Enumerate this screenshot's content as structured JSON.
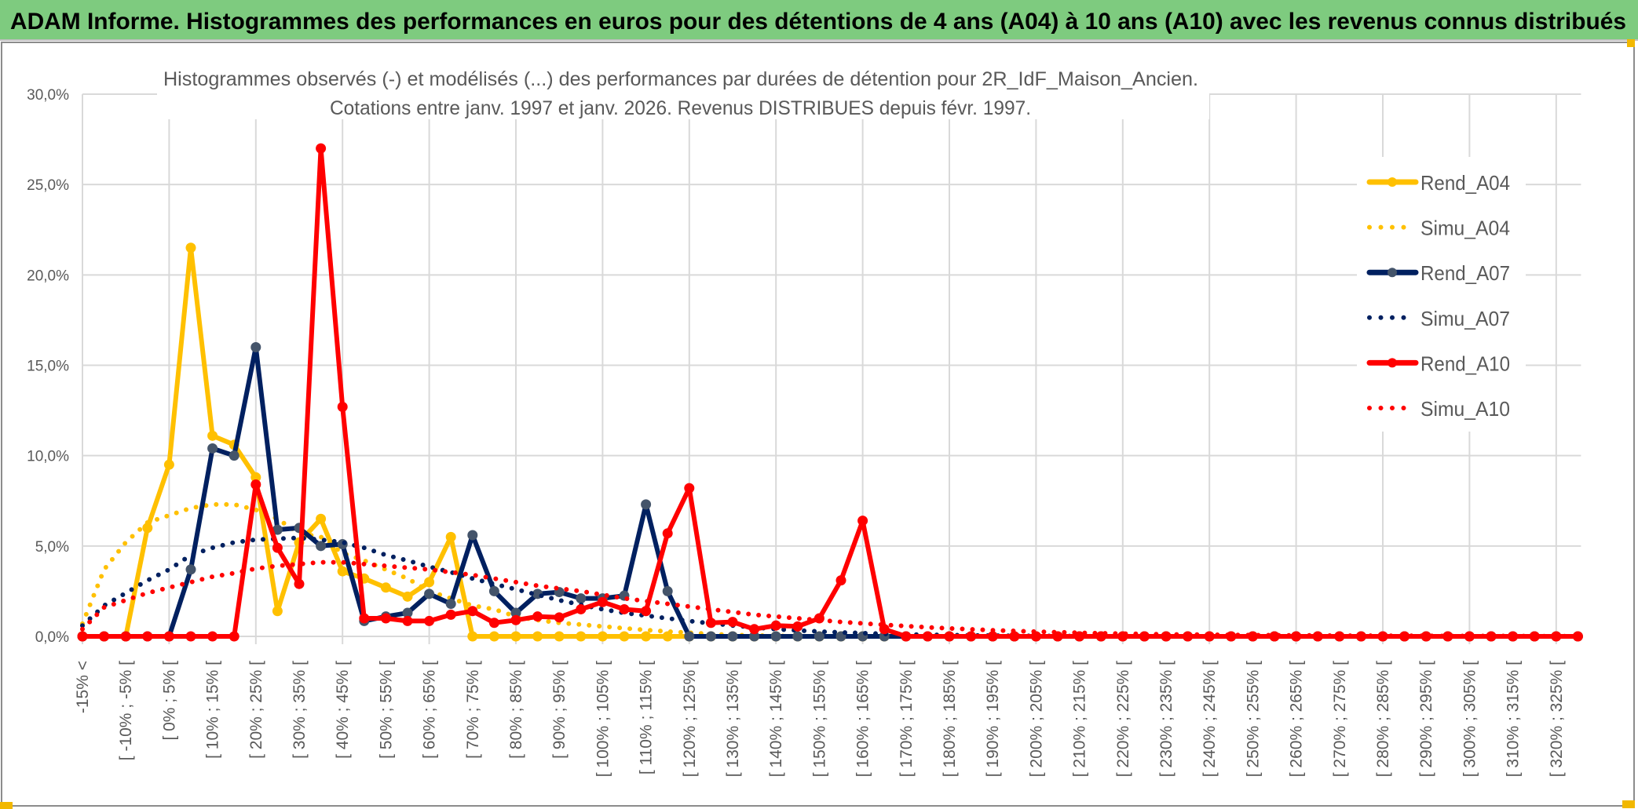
{
  "header": {
    "title": "ADAM Informe. Histogrammes des performances en euros pour des détentions de 4 ans (A04) à 10 ans (A10) avec les revenus connus distribués"
  },
  "colors": {
    "header_bg": "#7ECB7F",
    "A04": "#FFC000",
    "A07": "#002060",
    "A07_marker": "#44546A",
    "A10": "#FF0000",
    "grid": "#D9D9D9",
    "text": "#595959"
  },
  "chart_data": {
    "type": "line",
    "title_lines": [
      "Histogrammes observés (-) et modélisés (...) des performances par durées de détention pour 2R_IdF_Maison_Ancien.",
      "Cotations entre janv. 1997 et janv. 2026. Revenus DISTRIBUES depuis févr. 1997."
    ],
    "category_count": 70,
    "x_tick_labels": [
      "-15% <",
      "[ -10% ; -5% [",
      "[ 0% ; 5% [",
      "[ 10% ; 15% [",
      "[ 20% ; 25% [",
      "[ 30% ; 35% [",
      "[ 40% ; 45% [",
      "[ 50% ; 55% [",
      "[ 60% ; 65% [",
      "[ 70% ; 75% [",
      "[ 80% ; 85% [",
      "[ 90% ; 95% [",
      "[ 100% ; 105% [",
      "[ 110% ; 115% [",
      "[ 120% ; 125% [",
      "[ 130% ; 135% [",
      "[ 140% ; 145% [",
      "[ 150% ; 155% [",
      "[ 160% ; 165% [",
      "[ 170% ; 175% [",
      "[ 180% ; 185% [",
      "[ 190% ; 195% [",
      "[ 200% ; 205% [",
      "[ 210% ; 215% [",
      "[ 220% ; 225% [",
      "[ 230% ; 235% [",
      "[ 240% ; 245% [",
      "[ 250% ; 255% [",
      "[ 260% ; 265% [",
      "[ 270% ; 275% [",
      "[ 280% ; 285% [",
      "[ 290% ; 295% [",
      "[ 300% ; 305% [",
      "[ 310% ; 315% [",
      "[ 320% ; 325% ["
    ],
    "y_tick_labels": [
      "0,0%",
      "5,0%",
      "10,0%",
      "15,0%",
      "20,0%",
      "25,0%",
      "30,0%"
    ],
    "ylim": [
      0,
      30
    ],
    "yunit": "%",
    "grid": true,
    "legend_position": "right",
    "series": [
      {
        "name": "Rend_A04",
        "style": "solid",
        "color": "#FFC000",
        "marker": "#FFC000",
        "values": [
          0,
          0,
          0,
          6.0,
          9.5,
          21.5,
          11.1,
          10.6,
          8.8,
          1.4,
          5.2,
          6.5,
          3.6,
          3.2,
          2.7,
          2.2,
          3.0,
          5.5,
          0,
          0,
          0,
          0,
          0,
          0,
          0,
          0,
          0,
          0,
          0,
          0,
          0,
          0,
          0,
          0,
          0,
          0,
          0,
          0,
          0,
          0,
          0,
          0,
          0,
          0,
          0,
          0,
          0,
          0,
          0,
          0,
          0,
          0,
          0,
          0,
          0,
          0,
          0,
          0,
          0,
          0,
          0,
          0,
          0,
          0,
          0,
          0,
          0,
          0,
          0,
          0
        ]
      },
      {
        "name": "Simu_A04",
        "style": "dotted",
        "color": "#FFC000",
        "values": [
          0.7,
          3.7,
          5.2,
          6.3,
          6.7,
          7.1,
          7.3,
          7.3,
          7.0,
          6.5,
          5.7,
          5.5,
          4.6,
          4.2,
          3.7,
          3.2,
          2.5,
          2.1,
          1.7,
          1.5,
          1.1,
          0.9,
          0.75,
          0.65,
          0.55,
          0.45,
          0.35,
          0.27,
          0.2,
          0.13,
          0.08,
          0.05,
          0.03,
          0,
          0,
          0,
          0,
          0,
          0,
          0,
          0,
          0,
          0,
          0,
          0,
          0,
          0,
          0,
          0,
          0,
          0,
          0,
          0,
          0,
          0,
          0,
          0,
          0,
          0,
          0,
          0,
          0,
          0,
          0,
          0,
          0,
          0,
          0,
          0,
          0
        ]
      },
      {
        "name": "Rend_A07",
        "style": "solid",
        "color": "#002060",
        "marker": "#44546A",
        "values": [
          0,
          0,
          0,
          0,
          0,
          3.7,
          10.4,
          10.0,
          16.0,
          5.9,
          6.0,
          5.0,
          5.1,
          0.85,
          1.1,
          1.3,
          2.35,
          1.8,
          5.6,
          2.5,
          1.3,
          2.35,
          2.45,
          2.1,
          2.1,
          2.25,
          7.3,
          2.5,
          0,
          0,
          0,
          0,
          0,
          0,
          0,
          0,
          0,
          0,
          0,
          0,
          0,
          0,
          0,
          0,
          0,
          0,
          0,
          0,
          0,
          0,
          0,
          0,
          0,
          0,
          0,
          0,
          0,
          0,
          0,
          0,
          0,
          0,
          0,
          0,
          0,
          0,
          0,
          0,
          0,
          0
        ]
      },
      {
        "name": "Simu_A07",
        "style": "dotted",
        "color": "#002060",
        "values": [
          0.6,
          1.7,
          2.4,
          3.1,
          3.7,
          4.5,
          4.9,
          5.2,
          5.35,
          5.4,
          5.45,
          5.35,
          5.2,
          4.9,
          4.5,
          4.2,
          3.85,
          3.55,
          3.2,
          2.9,
          2.6,
          2.3,
          2.0,
          1.75,
          1.5,
          1.3,
          1.15,
          1.0,
          0.85,
          0.72,
          0.6,
          0.5,
          0.4,
          0.33,
          0.27,
          0.22,
          0.18,
          0.14,
          0.11,
          0.09,
          0.07,
          0.05,
          0.04,
          0.03,
          0.02,
          0.02,
          0.01,
          0,
          0,
          0,
          0,
          0,
          0,
          0,
          0,
          0,
          0,
          0,
          0,
          0,
          0,
          0,
          0,
          0,
          0,
          0,
          0,
          0,
          0,
          0
        ]
      },
      {
        "name": "Rend_A10",
        "style": "solid",
        "color": "#FF0000",
        "marker": "#FF0000",
        "values": [
          0,
          0,
          0,
          0,
          0,
          0,
          0,
          0,
          8.4,
          4.9,
          2.9,
          27.0,
          12.7,
          1.0,
          1.0,
          0.85,
          0.85,
          1.2,
          1.4,
          0.75,
          0.9,
          1.1,
          1.05,
          1.5,
          1.9,
          1.5,
          1.4,
          5.7,
          8.2,
          0.75,
          0.8,
          0.4,
          0.6,
          0.55,
          1.0,
          3.1,
          6.4,
          0.4,
          0,
          0,
          0,
          0,
          0,
          0,
          0,
          0,
          0,
          0,
          0,
          0,
          0,
          0,
          0,
          0,
          0,
          0,
          0,
          0,
          0,
          0,
          0,
          0,
          0,
          0,
          0,
          0,
          0,
          0,
          0,
          0
        ]
      },
      {
        "name": "Simu_A10",
        "style": "dotted",
        "color": "#FF0000",
        "values": [
          0.4,
          1.6,
          2.0,
          2.4,
          2.7,
          3.0,
          3.3,
          3.5,
          3.75,
          3.9,
          4.0,
          4.1,
          4.1,
          4.0,
          3.9,
          3.8,
          3.7,
          3.55,
          3.4,
          3.2,
          3.0,
          2.8,
          2.65,
          2.5,
          2.3,
          2.1,
          1.95,
          1.8,
          1.65,
          1.5,
          1.35,
          1.2,
          1.1,
          1.0,
          0.9,
          0.8,
          0.72,
          0.64,
          0.57,
          0.5,
          0.44,
          0.39,
          0.34,
          0.3,
          0.26,
          0.23,
          0.2,
          0.17,
          0.15,
          0.13,
          0.11,
          0.1,
          0.09,
          0.08,
          0.07,
          0.06,
          0.05,
          0.05,
          0.04,
          0.04,
          0.03,
          0.03,
          0.03,
          0.02,
          0.02,
          0.02,
          0.02,
          0.01,
          0.01,
          0.01
        ]
      }
    ]
  }
}
